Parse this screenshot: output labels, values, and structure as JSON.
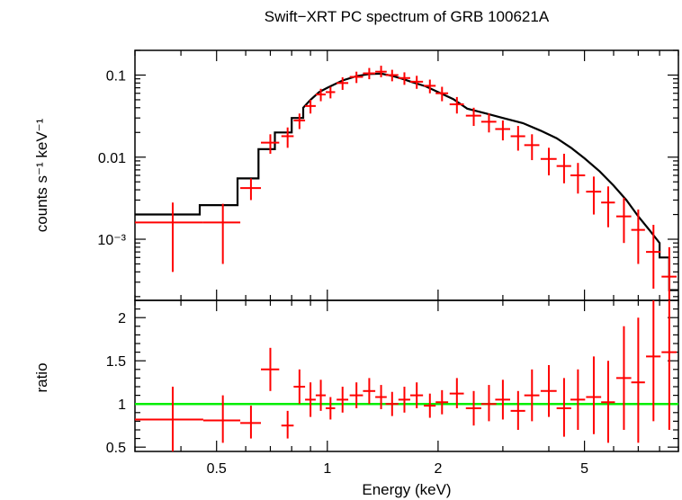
{
  "chart_data": [
    {
      "type": "scatter",
      "title": "Swift−XRT PC spectrum of GRB 100621A",
      "xlabel": "Energy (keV)",
      "ylabel": "counts s⁻¹ keV⁻¹",
      "xscale": "log",
      "yscale": "log",
      "xlim": [
        0.3,
        9.0
      ],
      "ylim": [
        0.00018,
        0.2
      ],
      "yticks": [
        {
          "value": 0.1,
          "label": "0.1"
        },
        {
          "value": 0.01,
          "label": "0.01"
        },
        {
          "value": 0.001,
          "label": "10⁻³"
        }
      ],
      "colors": {
        "data": "#ff0000",
        "model": "#000000"
      },
      "series": [
        {
          "kind": "data",
          "x": [
            0.38,
            0.52,
            0.62,
            0.7,
            0.78,
            0.84,
            0.9,
            0.96,
            1.02,
            1.1,
            1.2,
            1.3,
            1.4,
            1.5,
            1.62,
            1.75,
            1.9,
            2.05,
            2.25,
            2.5,
            2.75,
            3.0,
            3.3,
            3.6,
            4.0,
            4.4,
            4.8,
            5.3,
            5.8,
            6.4,
            7.0,
            7.7,
            8.5
          ],
          "xerr": [
            0.08,
            0.06,
            0.04,
            0.04,
            0.03,
            0.03,
            0.03,
            0.03,
            0.03,
            0.04,
            0.05,
            0.05,
            0.05,
            0.06,
            0.06,
            0.07,
            0.07,
            0.08,
            0.1,
            0.12,
            0.13,
            0.14,
            0.15,
            0.17,
            0.2,
            0.2,
            0.22,
            0.25,
            0.25,
            0.3,
            0.3,
            0.35,
            0.4
          ],
          "y": [
            0.0016,
            0.0016,
            0.0042,
            0.015,
            0.018,
            0.028,
            0.042,
            0.058,
            0.062,
            0.08,
            0.095,
            0.105,
            0.11,
            0.1,
            0.092,
            0.083,
            0.074,
            0.06,
            0.044,
            0.032,
            0.027,
            0.022,
            0.018,
            0.014,
            0.0095,
            0.0078,
            0.006,
            0.0038,
            0.0028,
            0.0019,
            0.0013,
            0.0007,
            0.00035
          ],
          "ylo": [
            0.0004,
            0.0005,
            0.003,
            0.011,
            0.013,
            0.022,
            0.034,
            0.048,
            0.052,
            0.066,
            0.08,
            0.089,
            0.094,
            0.084,
            0.076,
            0.068,
            0.06,
            0.048,
            0.034,
            0.024,
            0.02,
            0.016,
            0.012,
            0.0092,
            0.006,
            0.0048,
            0.0036,
            0.002,
            0.0014,
            0.0009,
            0.0005,
            0.00025,
            0.00018
          ],
          "yhi": [
            0.0028,
            0.0027,
            0.0055,
            0.019,
            0.023,
            0.034,
            0.05,
            0.068,
            0.072,
            0.094,
            0.11,
            0.122,
            0.13,
            0.116,
            0.108,
            0.098,
            0.088,
            0.072,
            0.054,
            0.04,
            0.034,
            0.028,
            0.024,
            0.019,
            0.013,
            0.011,
            0.0085,
            0.0058,
            0.0044,
            0.0032,
            0.0023,
            0.0015,
            0.0008
          ]
        },
        {
          "kind": "model",
          "x": [
            0.3,
            0.45,
            0.45,
            0.57,
            0.57,
            0.65,
            0.65,
            0.72,
            0.72,
            0.8,
            0.8,
            0.86,
            0.86,
            0.9,
            0.95,
            1.0,
            1.1,
            1.2,
            1.3,
            1.4,
            1.5,
            1.6,
            1.7,
            1.85,
            2.0,
            2.2,
            2.4,
            2.7,
            3.0,
            3.4,
            3.8,
            4.2,
            4.6,
            5.0,
            5.5,
            6.0,
            6.5,
            7.0,
            7.5,
            8.0,
            8.0,
            8.5,
            8.5,
            9.0
          ],
          "y": [
            0.002,
            0.002,
            0.0026,
            0.0026,
            0.0055,
            0.0055,
            0.0125,
            0.0125,
            0.02,
            0.02,
            0.03,
            0.03,
            0.04,
            0.05,
            0.062,
            0.07,
            0.086,
            0.097,
            0.103,
            0.104,
            0.098,
            0.09,
            0.082,
            0.073,
            0.062,
            0.051,
            0.039,
            0.034,
            0.03,
            0.026,
            0.021,
            0.017,
            0.013,
            0.0097,
            0.0067,
            0.0045,
            0.003,
            0.0019,
            0.0013,
            0.0009,
            0.0006,
            0.0006,
            0.00024,
            0.00024
          ]
        }
      ]
    },
    {
      "type": "scatter",
      "xlabel": "Energy (keV)",
      "ylabel": "ratio",
      "xscale": "log",
      "xlim": [
        0.3,
        9.0
      ],
      "ylim": [
        0.45,
        2.2
      ],
      "xticks": [
        {
          "value": 0.5,
          "label": "0.5"
        },
        {
          "value": 1,
          "label": "1"
        },
        {
          "value": 2,
          "label": "2"
        },
        {
          "value": 5,
          "label": "5"
        }
      ],
      "yticks": [
        {
          "value": 0.5,
          "label": "0.5"
        },
        {
          "value": 1,
          "label": "1"
        },
        {
          "value": 1.5,
          "label": "1.5"
        },
        {
          "value": 2,
          "label": "2"
        }
      ],
      "reference_line": {
        "y": 1,
        "color": "#00ee00"
      },
      "colors": {
        "data": "#ff0000"
      },
      "series": [
        {
          "kind": "data",
          "x": [
            0.38,
            0.52,
            0.62,
            0.7,
            0.78,
            0.84,
            0.9,
            0.96,
            1.02,
            1.1,
            1.2,
            1.3,
            1.4,
            1.5,
            1.62,
            1.75,
            1.9,
            2.05,
            2.25,
            2.5,
            2.75,
            3.0,
            3.3,
            3.6,
            4.0,
            4.4,
            4.8,
            5.3,
            5.8,
            6.4,
            7.0,
            7.7,
            8.5
          ],
          "xerr": [
            0.08,
            0.06,
            0.04,
            0.04,
            0.03,
            0.03,
            0.03,
            0.03,
            0.03,
            0.04,
            0.05,
            0.05,
            0.05,
            0.06,
            0.06,
            0.07,
            0.07,
            0.08,
            0.1,
            0.12,
            0.13,
            0.14,
            0.15,
            0.17,
            0.2,
            0.2,
            0.22,
            0.25,
            0.25,
            0.3,
            0.3,
            0.35,
            0.4
          ],
          "y": [
            0.82,
            0.81,
            0.78,
            1.4,
            0.75,
            1.2,
            1.05,
            1.1,
            0.95,
            1.05,
            1.1,
            1.15,
            1.08,
            1.0,
            1.05,
            1.1,
            0.98,
            1.02,
            1.12,
            0.95,
            1.0,
            1.05,
            0.92,
            1.1,
            1.15,
            0.95,
            1.05,
            1.08,
            1.02,
            1.3,
            1.25,
            1.55,
            1.6
          ],
          "ylo": [
            0.45,
            0.55,
            0.6,
            1.15,
            0.6,
            1.0,
            0.85,
            0.92,
            0.82,
            0.9,
            0.95,
            1.0,
            0.94,
            0.86,
            0.9,
            0.95,
            0.84,
            0.88,
            0.95,
            0.75,
            0.8,
            0.82,
            0.7,
            0.8,
            0.85,
            0.62,
            0.7,
            0.65,
            0.55,
            0.7,
            0.55,
            0.8,
            0.7
          ],
          "yhi": [
            1.2,
            1.1,
            0.98,
            1.65,
            0.92,
            1.4,
            1.25,
            1.28,
            1.08,
            1.2,
            1.25,
            1.3,
            1.22,
            1.14,
            1.2,
            1.25,
            1.12,
            1.16,
            1.3,
            1.15,
            1.22,
            1.28,
            1.15,
            1.4,
            1.45,
            1.3,
            1.4,
            1.55,
            1.5,
            1.9,
            2.0,
            2.2,
            2.2
          ]
        }
      ]
    }
  ]
}
